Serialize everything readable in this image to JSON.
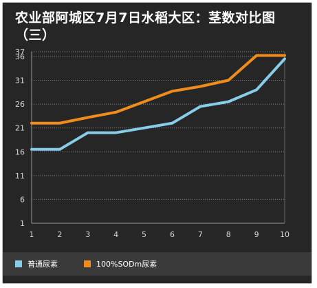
{
  "chart_data": {
    "type": "line",
    "title_lines": [
      "农业部阿城区7月7日水稻大区：茎数对比图",
      "（三）"
    ],
    "x": [
      1,
      2,
      3,
      4,
      5,
      6,
      7,
      8,
      9,
      10
    ],
    "x_tick_labels": [
      "1",
      "2",
      "3",
      "4",
      "5",
      "6",
      "7",
      "8",
      "9",
      "10"
    ],
    "y_tick_values": [
      1,
      6,
      11,
      16,
      21,
      26,
      31,
      36,
      37
    ],
    "y_tick_labels": [
      "1",
      "6",
      "11",
      "16",
      "21",
      "26",
      "31",
      "36",
      "37"
    ],
    "ylim": [
      1,
      37
    ],
    "grid": "horizontal-dotted",
    "legend_position": "bottom",
    "series": [
      {
        "name": "普通尿素",
        "color": "#87cce8",
        "values": [
          16.5,
          16.5,
          20,
          20,
          21,
          22,
          25.5,
          26.5,
          29,
          35.5
        ]
      },
      {
        "name": "100%SODm尿素",
        "color": "#f08c1e",
        "values": [
          22,
          22,
          23.2,
          24.3,
          26.5,
          28.7,
          29.7,
          31,
          36.2,
          36.2
        ]
      }
    ]
  }
}
